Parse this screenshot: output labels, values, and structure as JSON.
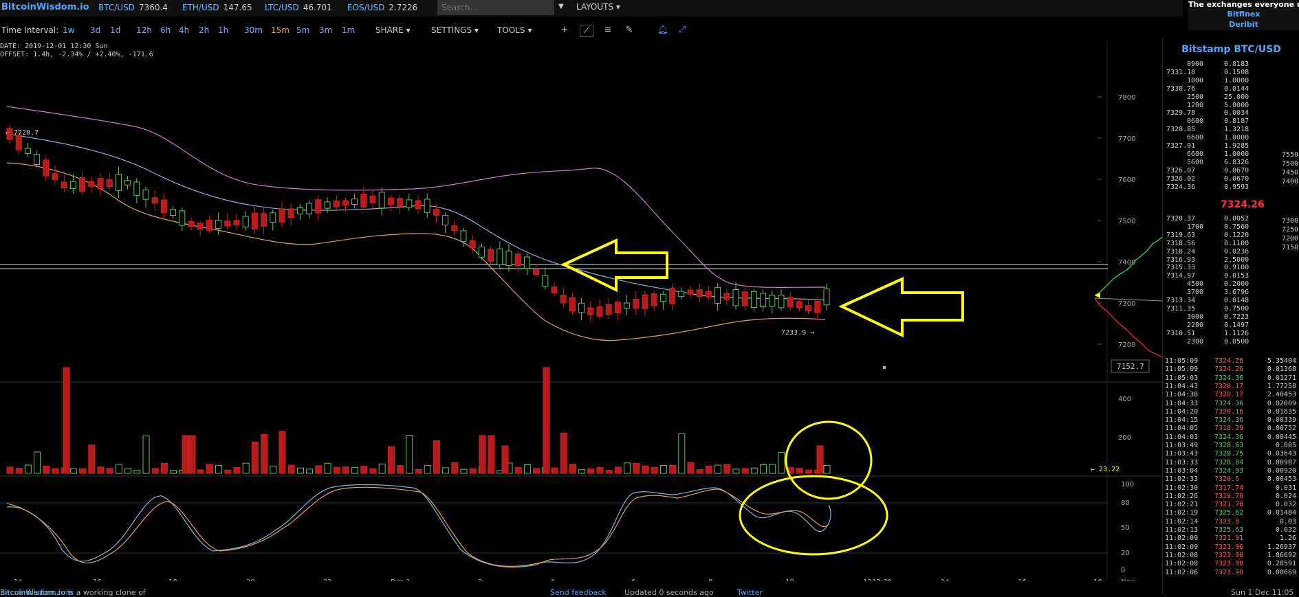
{
  "app": {
    "logo": "BitcoinWisdom.io"
  },
  "tickers": [
    {
      "symbol": "BTC/USD",
      "value": "7360.4"
    },
    {
      "symbol": "ETH/USD",
      "value": "147.65"
    },
    {
      "symbol": "LTC/USD",
      "value": "46.701"
    },
    {
      "symbol": "EOS/USD",
      "value": "2.7226"
    }
  ],
  "search": {
    "placeholder": "Search..."
  },
  "layouts_label": "LAYOUTS",
  "promo": {
    "title": "The exchanges everyone us",
    "links": [
      "Bitfinex",
      "Deribit"
    ]
  },
  "toolbar": {
    "time_interval_label": "Time Interval:",
    "intervals": [
      {
        "label": "1w",
        "active": false
      },
      {
        "label": "3d",
        "active": false
      },
      {
        "label": "1d",
        "active": false
      },
      {
        "label": "12h",
        "active": false
      },
      {
        "label": "6h",
        "active": false
      },
      {
        "label": "4h",
        "active": false
      },
      {
        "label": "2h",
        "active": false
      },
      {
        "label": "1h",
        "active": false
      },
      {
        "label": "30m",
        "active": false
      },
      {
        "label": "15m",
        "active": true
      },
      {
        "label": "5m",
        "active": false
      },
      {
        "label": "3m",
        "active": false
      },
      {
        "label": "1m",
        "active": false
      }
    ],
    "menus": [
      "SHARE",
      "SETTINGS",
      "TOOLS"
    ],
    "icons": [
      "plus-icon",
      "line-draw-icon",
      "menu-lines-icon",
      "pencil-icon",
      "bell-icon",
      "fullscreen-icon"
    ]
  },
  "info": {
    "date_line": "DATE: 2019-12-01 12:30 Sun",
    "offset_line": "OFFSET: 1.4h, -2.34% / +2.40%, -171.6"
  },
  "chart_data": {
    "type": "candlestick",
    "price_axis": {
      "ticks": [
        "7800",
        "7700",
        "7600",
        "7500",
        "7400",
        "7300",
        "7200"
      ]
    },
    "volume_axis": {
      "ticks": [
        "400",
        "200"
      ]
    },
    "stoch_axis": {
      "ticks": [
        "100",
        "80",
        "50",
        "20",
        "0"
      ]
    },
    "x_ticks": [
      "14",
      "16",
      "18",
      "20",
      "22",
      "Dec 1",
      "2",
      "4",
      "6",
      "8",
      "10",
      "12",
      "12:30",
      "14",
      "16",
      "18",
      "Now"
    ],
    "labels": {
      "high": "← 7720.7",
      "low": "7233.9 →",
      "volume_last": "← 23.22",
      "price_box": "7152.7"
    },
    "overlay": {
      "depth_labels": [
        "7550",
        "7500",
        "7450",
        "7400",
        "7300",
        "7250",
        "7200",
        "7150"
      ]
    }
  },
  "orderbook": {
    "title": "Bitstamp BTC/USD",
    "asks": [
      {
        "price": "0900",
        "amount": "0.8183"
      },
      {
        "price": "7331.18",
        "amount": "0.1508"
      },
      {
        "price": "1000",
        "amount": "1.0000"
      },
      {
        "price": "7330.76",
        "amount": "0.0144"
      },
      {
        "price": "2500",
        "amount": "25.000"
      },
      {
        "price": "1200",
        "amount": "5.0000"
      },
      {
        "price": "7329.78",
        "amount": "0.0034"
      },
      {
        "price": "0600",
        "amount": "0.8187"
      },
      {
        "price": "7328.85",
        "amount": "1.3218"
      },
      {
        "price": "6600",
        "amount": "1.0000"
      },
      {
        "price": "7327.01",
        "amount": "1.9285"
      },
      {
        "price": "6600",
        "amount": "1.0000"
      },
      {
        "price": "5600",
        "amount": "6.8326"
      },
      {
        "price": "7326.07",
        "amount": "0.0670"
      },
      {
        "price": "7326.02",
        "amount": "0.0670"
      },
      {
        "price": "7324.36",
        "amount": "0.9593"
      }
    ],
    "last": "7324.26",
    "bids": [
      {
        "price": "7320.37",
        "amount": "0.0052"
      },
      {
        "price": "1700",
        "amount": "0.7560"
      },
      {
        "price": "7319.63",
        "amount": "0.1220"
      },
      {
        "price": "7318.56",
        "amount": "0.1100"
      },
      {
        "price": "7318.24",
        "amount": "0.0236"
      },
      {
        "price": "7316.93",
        "amount": "2.5000"
      },
      {
        "price": "7315.33",
        "amount": "0.9100"
      },
      {
        "price": "7314.97",
        "amount": "0.0153"
      },
      {
        "price": "4500",
        "amount": "0.2000"
      },
      {
        "price": "3700",
        "amount": "3.6796"
      },
      {
        "price": "7313.34",
        "amount": "0.0148"
      },
      {
        "price": "7311.35",
        "amount": "0.7500"
      },
      {
        "price": "3000",
        "amount": "0.7223"
      },
      {
        "price": "2200",
        "amount": "0.1497"
      },
      {
        "price": "7310.51",
        "amount": "1.1126"
      },
      {
        "price": "2300",
        "amount": "0.0500"
      }
    ]
  },
  "trades": [
    {
      "time": "11:05:09",
      "price": "7324.26",
      "amount": "5.35404",
      "dir": "dn"
    },
    {
      "time": "11:05:09",
      "price": "7324.26",
      "amount": "0.01368",
      "dir": "dn"
    },
    {
      "time": "11:05:03",
      "price": "7324.36",
      "amount": "0.01271",
      "dir": "up"
    },
    {
      "time": "11:04:43",
      "price": "7320.17",
      "amount": "1.77258",
      "dir": "dn"
    },
    {
      "time": "11:04:38",
      "price": "7320.17",
      "amount": "2.40453",
      "dir": "dn"
    },
    {
      "time": "11:04:33",
      "price": "7324.36",
      "amount": "0.02009",
      "dir": "up"
    },
    {
      "time": "11:04:20",
      "price": "7320.16",
      "amount": "0.01635",
      "dir": "dn"
    },
    {
      "time": "11:04:15",
      "price": "7324.36",
      "amount": "0.00339",
      "dir": "up"
    },
    {
      "time": "11:04:05",
      "price": "7318.29",
      "amount": "0.00752",
      "dir": "dn"
    },
    {
      "time": "11:04:03",
      "price": "7324.36",
      "amount": "0.00445",
      "dir": "up"
    },
    {
      "time": "11:03:49",
      "price": "7328.63",
      "amount": "0.005",
      "dir": "up"
    },
    {
      "time": "11:03:43",
      "price": "7328.75",
      "amount": "0.03643",
      "dir": "up"
    },
    {
      "time": "11:03:33",
      "price": "7328.84",
      "amount": "0.00907",
      "dir": "up"
    },
    {
      "time": "11:03:04",
      "price": "7324.93",
      "amount": "0.00920",
      "dir": "up"
    },
    {
      "time": "11:02:33",
      "price": "7320.6",
      "amount": "0.00453",
      "dir": "dn"
    },
    {
      "time": "11:02:30",
      "price": "7317.74",
      "amount": "0.031",
      "dir": "dn"
    },
    {
      "time": "11:02:26",
      "price": "7319.76",
      "amount": "0.024",
      "dir": "dn"
    },
    {
      "time": "11:02:21",
      "price": "7321.78",
      "amount": "0.032",
      "dir": "dn"
    },
    {
      "time": "11:02:19",
      "price": "7325.62",
      "amount": "0.01484",
      "dir": "up"
    },
    {
      "time": "11:02:14",
      "price": "7323.8",
      "amount": "0.03",
      "dir": "dn"
    },
    {
      "time": "11:02:13",
      "price": "7325.63",
      "amount": "0.032",
      "dir": "up"
    },
    {
      "time": "11:02:09",
      "price": "7321.91",
      "amount": "1.26",
      "dir": "dn"
    },
    {
      "time": "11:02:09",
      "price": "7321.96",
      "amount": "1.26937",
      "dir": "dn"
    },
    {
      "time": "11:02:08",
      "price": "7323.98",
      "amount": "1.86692",
      "dir": "dn"
    },
    {
      "time": "11:02:08",
      "price": "7323.98",
      "amount": "0.28591",
      "dir": "dn"
    },
    {
      "time": "11:02:06",
      "price": "7323.98",
      "amount": "0.00669",
      "dir": "dn"
    }
  ],
  "footer": {
    "text": "BitcoinWisdom.io is a working clone of",
    "link": "bitcoinwisdom.com",
    "feedback": "Send feedback",
    "updated": "Updated 0 seconds ago",
    "twitter": "Twitter",
    "clock": "Sun 1 Dec 11:05"
  },
  "colors": {
    "up": "#5cc85c",
    "down": "#d42020",
    "accent": "#4da6ff",
    "annotation": "#ffff00",
    "upper_band": "#c77dcc",
    "ma": "#7fb5d9",
    "lower_band": "#e0a050"
  }
}
